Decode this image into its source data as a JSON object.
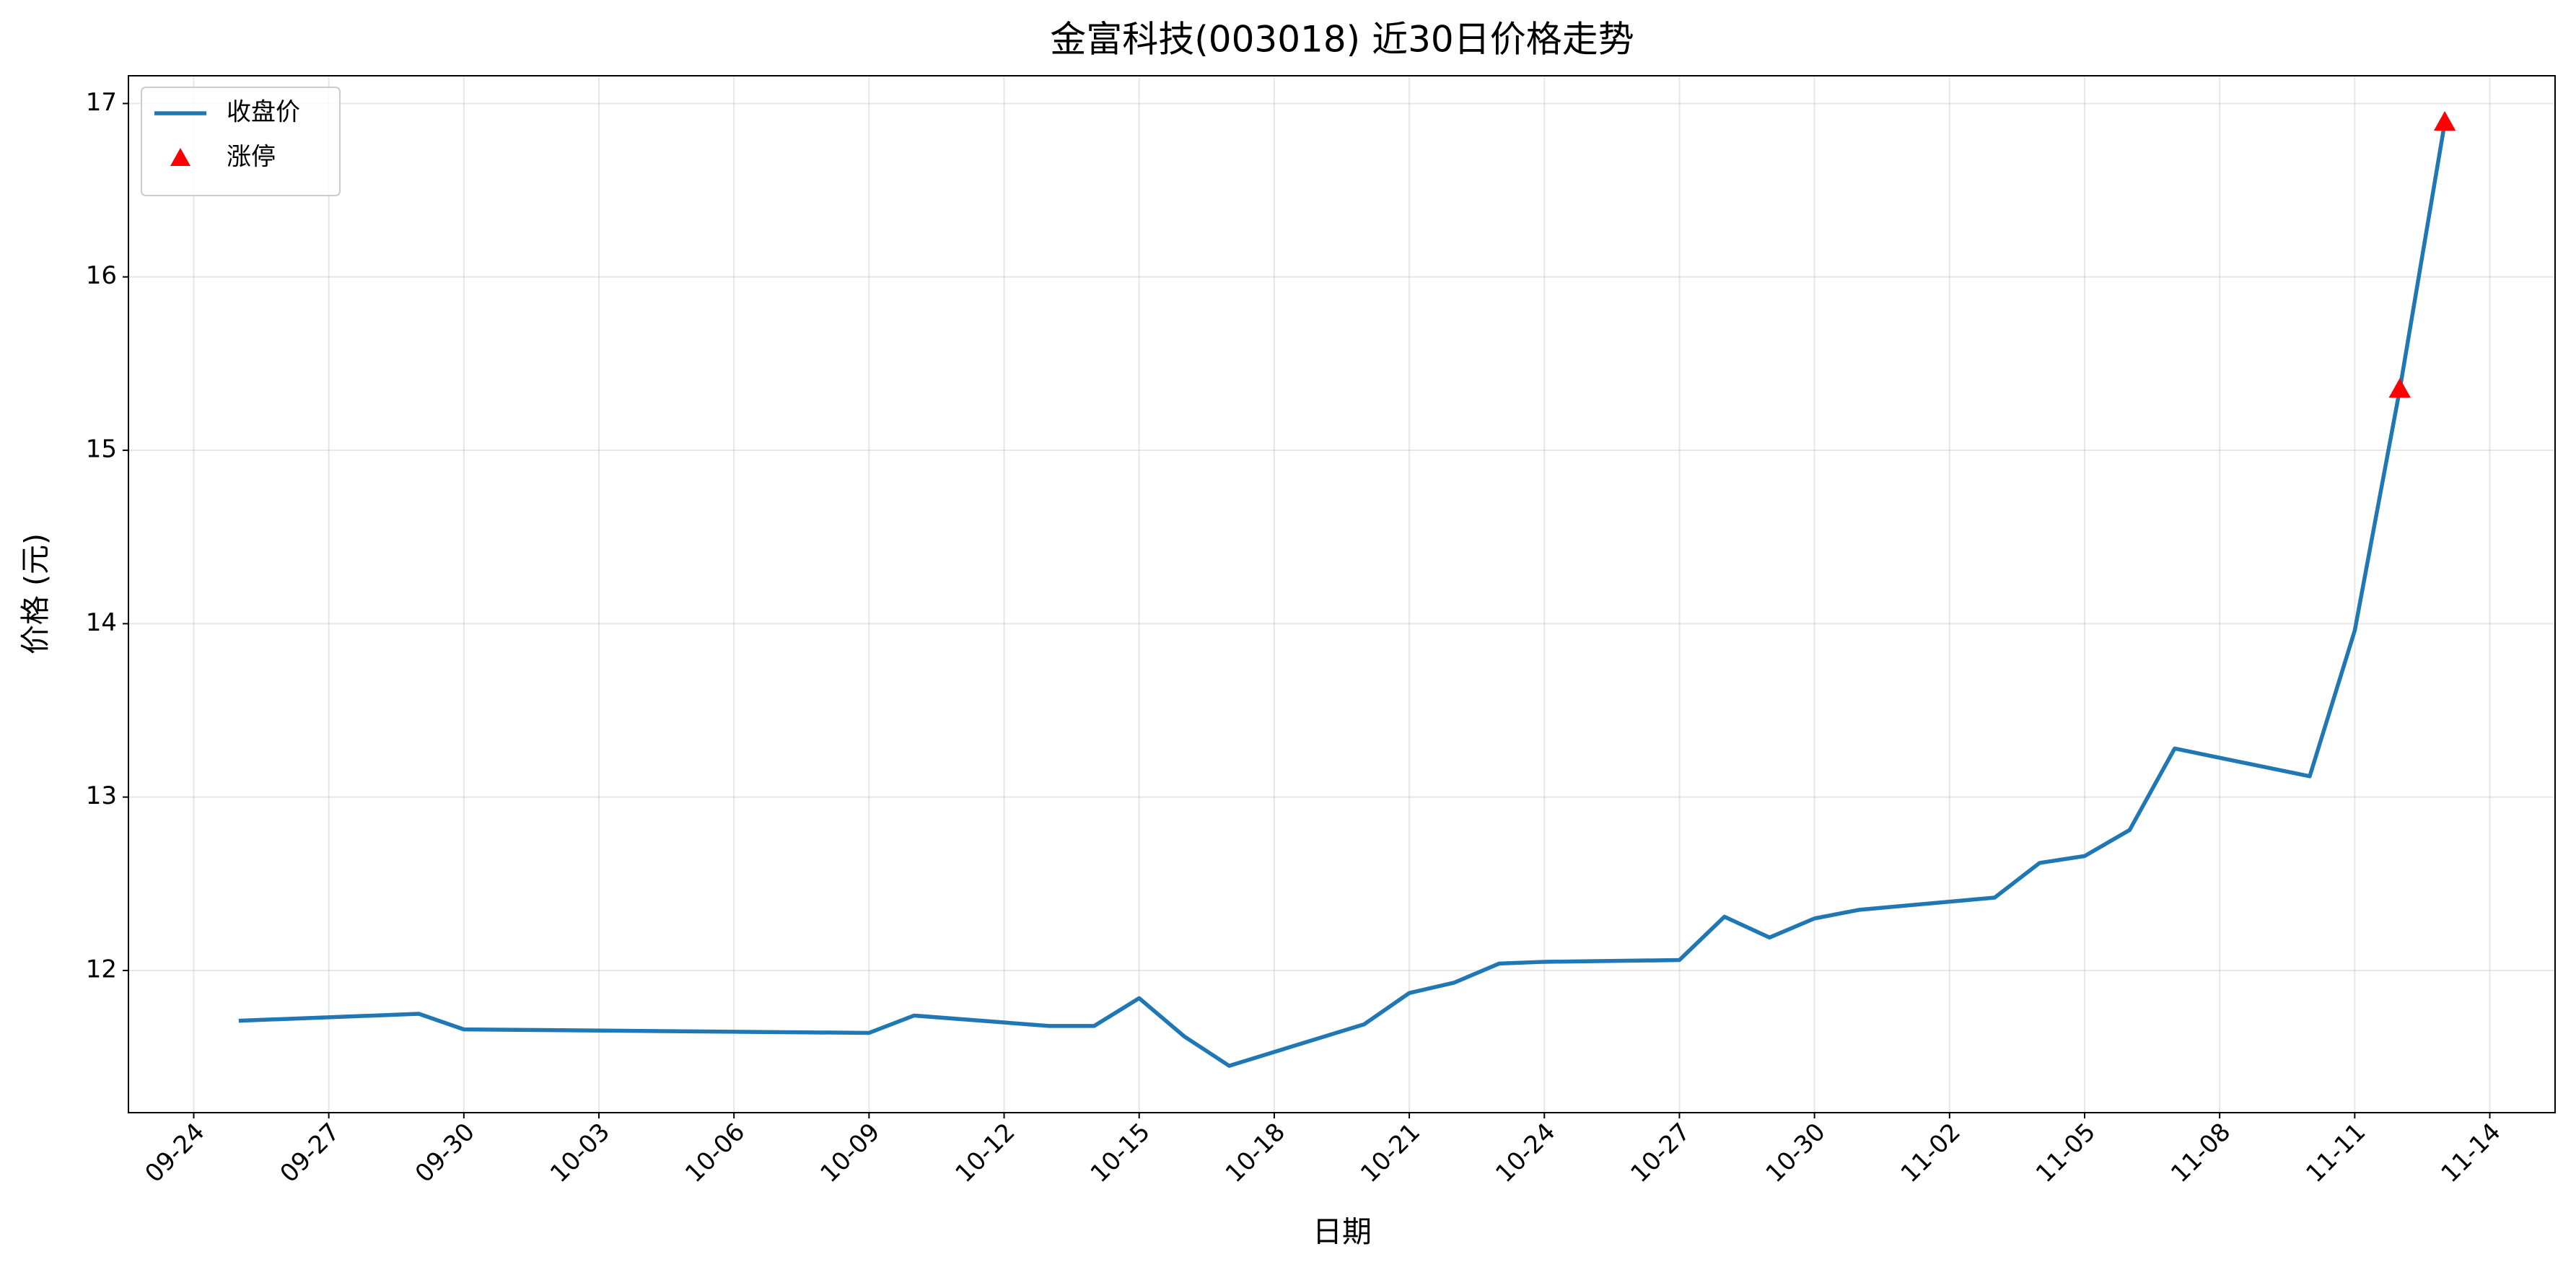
{
  "chart_data": {
    "type": "line",
    "title": "金富科技(003018) 近30日价格走势",
    "x_label": "日期",
    "y_label": "价格 (元)",
    "series": [
      {
        "name": "收盘价",
        "type": "line",
        "color": "#1f77b4",
        "x": [
          "09-25",
          "09-29",
          "09-30",
          "10-09",
          "10-10",
          "10-13",
          "10-14",
          "10-15",
          "10-16",
          "10-17",
          "10-20",
          "10-21",
          "10-22",
          "10-23",
          "10-24",
          "10-27",
          "10-28",
          "10-29",
          "10-30",
          "10-31",
          "11-03",
          "11-04",
          "11-05",
          "11-06",
          "11-07",
          "11-10",
          "11-11",
          "11-12",
          "11-13"
        ],
        "values": [
          11.71,
          11.75,
          11.66,
          11.64,
          11.74,
          11.68,
          11.68,
          11.84,
          11.62,
          11.45,
          11.69,
          11.87,
          11.93,
          12.04,
          12.05,
          12.06,
          12.31,
          12.19,
          12.3,
          12.35,
          12.42,
          12.62,
          12.66,
          12.81,
          13.28,
          13.12,
          13.96,
          15.35,
          16.89
        ]
      },
      {
        "name": "涨停",
        "type": "scatter",
        "color": "#ff0000",
        "x": [
          "11-12",
          "11-13"
        ],
        "values": [
          15.35,
          16.89
        ]
      }
    ],
    "ylim": [
      11.18,
      17.16
    ],
    "yticks": [
      12,
      13,
      14,
      15,
      16,
      17
    ],
    "xticks": [
      "09-24",
      "09-27",
      "09-30",
      "10-03",
      "10-06",
      "10-09",
      "10-12",
      "10-15",
      "10-18",
      "10-21",
      "10-24",
      "10-27",
      "10-30",
      "11-02",
      "11-05",
      "11-08",
      "11-11",
      "11-14"
    ],
    "grid": true,
    "legend": "upper left"
  }
}
